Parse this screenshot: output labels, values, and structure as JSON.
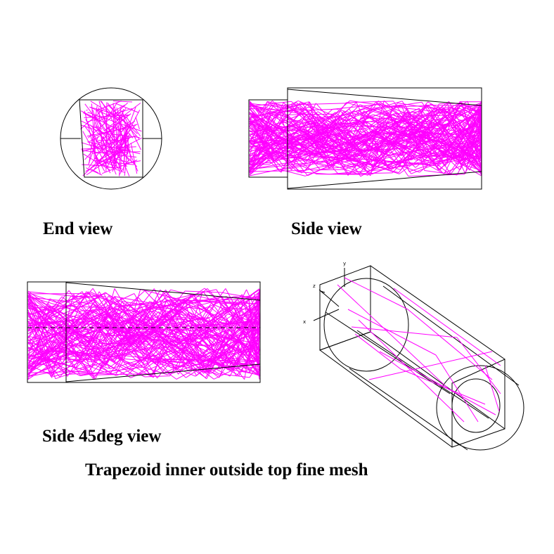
{
  "labels": {
    "end_view": "End view",
    "side_view": "Side view",
    "side45_view": "Side 45deg view",
    "caption": "Trapezoid inner outside top fine mesh"
  },
  "axes": {
    "y": "y",
    "z": "z",
    "x": "x"
  },
  "colors": {
    "outline": "#000000",
    "ray": "#ff00ff",
    "background": "#ffffff"
  },
  "rays": {
    "end_view_count": 130,
    "side_view_count": 110,
    "side45_view_count": 110,
    "iso_view_count": 14
  }
}
